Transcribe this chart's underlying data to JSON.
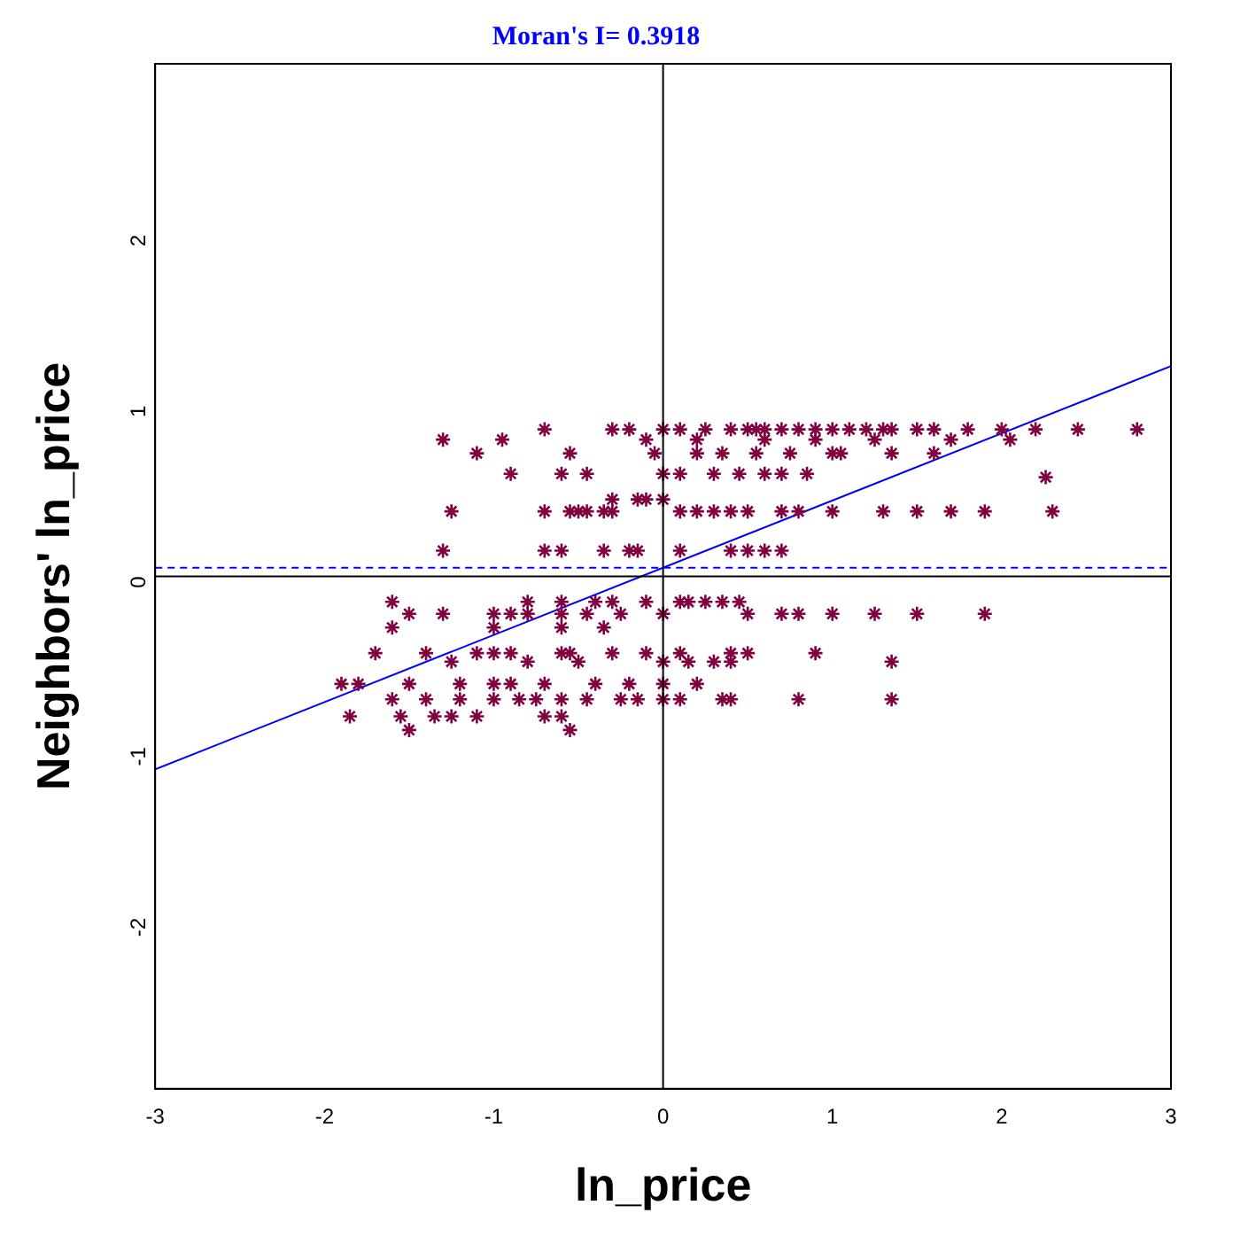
{
  "chart_data": {
    "type": "scatter",
    "title": "Moran's I= 0.3918",
    "xlabel": "ln_price",
    "ylabel": "Neighbors' ln_price",
    "xlim": [
      -3,
      3
    ],
    "xticks": [
      -3,
      -2,
      -1,
      0,
      1,
      2,
      3
    ],
    "ylim": [
      -3,
      3
    ],
    "yticks": [
      -2,
      -1,
      0,
      1,
      2
    ],
    "grid": false,
    "legend": false,
    "series": [
      {
        "color": "#800040",
        "marker": "cross",
        "x": [
          -0.7,
          -0.3,
          -0.2,
          0.0,
          0.1,
          0.25,
          0.4,
          0.5,
          0.55,
          0.6,
          0.7,
          0.8,
          0.9,
          1.0,
          1.1,
          1.2,
          1.3,
          1.35,
          1.5,
          1.6,
          1.8,
          2.0,
          2.2,
          2.45,
          2.8,
          -1.3,
          -0.95,
          -0.1,
          0.2,
          0.6,
          0.9,
          1.25,
          1.7,
          2.05,
          -1.1,
          -0.55,
          -0.05,
          0.2,
          0.35,
          0.55,
          0.75,
          1.0,
          1.05,
          1.35,
          1.6,
          -0.9,
          -0.6,
          -0.45,
          0.0,
          0.1,
          0.3,
          0.45,
          0.6,
          0.7,
          0.85,
          2.26,
          -0.3,
          -0.15,
          -0.1,
          0.0,
          -1.25,
          -0.7,
          -0.55,
          -0.5,
          -0.45,
          -0.35,
          -0.3,
          0.1,
          0.2,
          0.3,
          0.4,
          0.5,
          0.7,
          0.8,
          1.0,
          1.3,
          1.5,
          1.7,
          1.9,
          2.3,
          -1.3,
          -0.7,
          -0.6,
          -0.35,
          -0.2,
          -0.15,
          0.1,
          0.4,
          0.5,
          0.6,
          0.7,
          -1.6,
          -0.8,
          -0.6,
          -0.4,
          -0.3,
          -0.1,
          0.1,
          0.15,
          0.25,
          0.35,
          0.45,
          -1.5,
          -1.3,
          -1.0,
          -0.9,
          -0.8,
          -0.6,
          -0.45,
          -0.25,
          0.0,
          0.5,
          0.7,
          0.8,
          1.0,
          1.25,
          1.5,
          1.9,
          -1.6,
          -1.0,
          -0.6,
          -0.35,
          -1.7,
          -1.4,
          -1.1,
          -1.0,
          -0.9,
          -0.6,
          -0.55,
          -0.3,
          -0.1,
          0.1,
          0.4,
          0.5,
          0.9,
          -1.25,
          -0.8,
          -0.5,
          0.0,
          0.15,
          0.3,
          0.4,
          1.35,
          -1.9,
          -1.8,
          -1.5,
          -1.2,
          -1.0,
          -0.9,
          -0.7,
          -0.4,
          -0.2,
          0.0,
          0.2,
          -1.6,
          -1.4,
          -1.2,
          -1.0,
          -0.85,
          -0.75,
          -0.6,
          -0.45,
          -0.25,
          -0.15,
          0.0,
          0.1,
          0.35,
          0.4,
          0.8,
          1.35,
          -1.85,
          -1.55,
          -1.35,
          -1.25,
          -1.1,
          -0.7,
          -0.6,
          -1.5,
          -0.55
        ],
        "values": [
          0.86,
          0.86,
          0.86,
          0.86,
          0.86,
          0.86,
          0.86,
          0.86,
          0.86,
          0.86,
          0.86,
          0.86,
          0.86,
          0.86,
          0.86,
          0.86,
          0.86,
          0.86,
          0.86,
          0.86,
          0.86,
          0.86,
          0.86,
          0.86,
          0.86,
          0.8,
          0.8,
          0.8,
          0.8,
          0.8,
          0.8,
          0.8,
          0.8,
          0.8,
          0.72,
          0.72,
          0.72,
          0.72,
          0.72,
          0.72,
          0.72,
          0.72,
          0.72,
          0.72,
          0.72,
          0.6,
          0.6,
          0.6,
          0.6,
          0.6,
          0.6,
          0.6,
          0.6,
          0.6,
          0.6,
          0.58,
          0.45,
          0.45,
          0.45,
          0.45,
          0.38,
          0.38,
          0.38,
          0.38,
          0.38,
          0.38,
          0.38,
          0.38,
          0.38,
          0.38,
          0.38,
          0.38,
          0.38,
          0.38,
          0.38,
          0.38,
          0.38,
          0.38,
          0.38,
          0.38,
          0.15,
          0.15,
          0.15,
          0.15,
          0.15,
          0.15,
          0.15,
          0.15,
          0.15,
          0.15,
          0.15,
          -0.15,
          -0.15,
          -0.15,
          -0.15,
          -0.15,
          -0.15,
          -0.15,
          -0.15,
          -0.15,
          -0.15,
          -0.15,
          -0.22,
          -0.22,
          -0.22,
          -0.22,
          -0.22,
          -0.22,
          -0.22,
          -0.22,
          -0.22,
          -0.22,
          -0.22,
          -0.22,
          -0.22,
          -0.22,
          -0.22,
          -0.22,
          -0.3,
          -0.3,
          -0.3,
          -0.3,
          -0.45,
          -0.45,
          -0.45,
          -0.45,
          -0.45,
          -0.45,
          -0.45,
          -0.45,
          -0.45,
          -0.45,
          -0.45,
          -0.45,
          -0.45,
          -0.5,
          -0.5,
          -0.5,
          -0.5,
          -0.5,
          -0.5,
          -0.5,
          -0.5,
          -0.63,
          -0.63,
          -0.63,
          -0.63,
          -0.63,
          -0.63,
          -0.63,
          -0.63,
          -0.63,
          -0.63,
          -0.63,
          -0.72,
          -0.72,
          -0.72,
          -0.72,
          -0.72,
          -0.72,
          -0.72,
          -0.72,
          -0.72,
          -0.72,
          -0.72,
          -0.72,
          -0.72,
          -0.72,
          -0.72,
          -0.72,
          -0.82,
          -0.82,
          -0.82,
          -0.82,
          -0.82,
          -0.82,
          -0.82,
          -0.9,
          -0.9
        ]
      },
      {
        "type": "line",
        "color": "#0000ff",
        "x": [
          -3,
          3
        ],
        "values": [
          -1.13,
          1.23
        ]
      }
    ],
    "ref_lines": [
      {
        "axis": "x",
        "value": 0,
        "color": "#000000",
        "line_style": "solid"
      },
      {
        "axis": "y",
        "value": 0,
        "color": "#000000",
        "line_style": "solid"
      },
      {
        "axis": "y",
        "value": 0.05,
        "color": "#0000ff",
        "line_style": "dashed"
      }
    ]
  }
}
